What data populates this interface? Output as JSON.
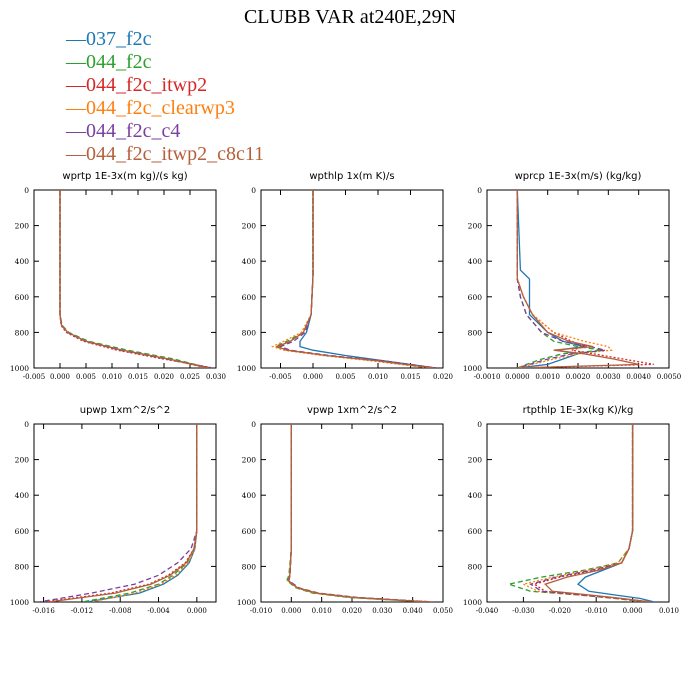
{
  "title": "CLUBB VAR at240E,29N",
  "legend": [
    {
      "label": "037_f2c",
      "color": "#1f77b4",
      "dash": "solid"
    },
    {
      "label": "044_f2c",
      "color": "#2ca02c",
      "dash": "dash"
    },
    {
      "label": "044_f2c_itwp2",
      "color": "#d62728",
      "dash": "dot"
    },
    {
      "label": "044_f2c_clearwp3",
      "color": "#ff7f0e",
      "dash": "dot"
    },
    {
      "label": "044_f2c_c4",
      "color": "#7b3f9e",
      "dash": "dash"
    },
    {
      "label": "044_f2c_itwp2_c8c11",
      "color": "#b5603a",
      "dash": "solid"
    }
  ],
  "chart_data": [
    {
      "type": "line",
      "title": "wprtp  1E-3x(m kg)/(s kg)",
      "xlim": [
        -0.005,
        0.03
      ],
      "xticks": [
        "-0.005",
        "0.000",
        "0.005",
        "0.010",
        "0.015",
        "0.020",
        "0.025",
        "0.030"
      ],
      "ylim": [
        1000,
        0
      ],
      "yticks": [
        "0",
        "200",
        "400",
        "600",
        "800",
        "1000"
      ],
      "y": [
        0,
        400,
        700,
        760,
        800,
        850,
        900,
        950,
        1000
      ],
      "series": [
        {
          "name": "037_f2c",
          "x": [
            0.0,
            0.0,
            0.0,
            0.0003,
            0.0015,
            0.005,
            0.012,
            0.021,
            0.029
          ]
        },
        {
          "name": "044_f2c",
          "x": [
            0.0,
            0.0,
            0.0,
            0.0004,
            0.0017,
            0.0055,
            0.013,
            0.022,
            0.0285
          ]
        },
        {
          "name": "044_f2c_itwp2",
          "x": [
            0.0,
            0.0,
            0.0,
            0.0002,
            0.0012,
            0.0045,
            0.011,
            0.02,
            0.0295
          ]
        },
        {
          "name": "044_f2c_clearwp3",
          "x": [
            0.0,
            0.0,
            0.0,
            0.0003,
            0.0015,
            0.005,
            0.012,
            0.021,
            0.028
          ]
        },
        {
          "name": "044_f2c_c4",
          "x": [
            0.0,
            0.0,
            0.0,
            0.0003,
            0.0014,
            0.0048,
            0.0115,
            0.0205,
            0.029
          ]
        },
        {
          "name": "044_f2c_itwp2_c8c11",
          "x": [
            0.0,
            0.0,
            0.0,
            0.0003,
            0.0015,
            0.005,
            0.012,
            0.021,
            0.0285
          ]
        }
      ]
    },
    {
      "type": "line",
      "title": "wpthlp  1x(m K)/s",
      "xlim": [
        -0.008,
        0.02
      ],
      "xticks": [
        "-0.005",
        "0.000",
        "0.005",
        "0.010",
        "0.015",
        "0.020"
      ],
      "xtick_values": [
        -0.005,
        0.0,
        0.005,
        0.01,
        0.015,
        0.02
      ],
      "ylim": [
        1000,
        0
      ],
      "yticks": [
        "0",
        "200",
        "400",
        "600",
        "800",
        "1000"
      ],
      "y": [
        0,
        480,
        700,
        800,
        850,
        880,
        900,
        930,
        960,
        1000
      ],
      "series": [
        {
          "name": "037_f2c",
          "x": [
            0.0,
            0.0,
            -0.0003,
            -0.001,
            -0.002,
            -0.002,
            0.0,
            0.005,
            0.011,
            0.019
          ]
        },
        {
          "name": "044_f2c",
          "x": [
            0.0,
            0.0,
            -0.0003,
            -0.0015,
            -0.004,
            -0.0058,
            -0.004,
            0.002,
            0.01,
            0.018
          ]
        },
        {
          "name": "044_f2c_itwp2",
          "x": [
            0.0,
            0.0,
            -0.0003,
            -0.0015,
            -0.0035,
            -0.0055,
            -0.004,
            0.002,
            0.01,
            0.019
          ]
        },
        {
          "name": "044_f2c_clearwp3",
          "x": [
            0.0,
            0.0,
            -0.0003,
            -0.0018,
            -0.0045,
            -0.0062,
            -0.0045,
            0.0015,
            0.009,
            0.018
          ]
        },
        {
          "name": "044_f2c_c4",
          "x": [
            0.0,
            0.0,
            -0.0003,
            -0.0012,
            -0.003,
            -0.005,
            -0.0035,
            0.0025,
            0.011,
            0.019
          ]
        },
        {
          "name": "044_f2c_itwp2_c8c11",
          "x": [
            0.0,
            0.0,
            -0.0003,
            -0.0015,
            -0.0035,
            -0.0055,
            -0.004,
            0.002,
            0.01,
            0.0185
          ]
        }
      ]
    },
    {
      "type": "line",
      "title": "wprcp  1E-3x(m/s) (kg/kg)",
      "xlim": [
        -0.001,
        0.005
      ],
      "xticks": [
        "-0.0010",
        "0.0000",
        "0.0010",
        "0.0020",
        "0.0030",
        "0.0040",
        "0.0050"
      ],
      "ylim": [
        1000,
        0
      ],
      "yticks": [
        "0",
        "200",
        "400",
        "600",
        "800",
        "1000"
      ],
      "y": [
        0,
        450,
        500,
        600,
        700,
        800,
        850,
        880,
        900,
        920,
        950,
        980,
        1000
      ],
      "series": [
        {
          "name": "037_f2c",
          "x": [
            0.0,
            0.0001,
            0.0004,
            0.0004,
            0.0004,
            0.001,
            0.0015,
            0.0022,
            0.0013,
            0.002,
            0.0015,
            0.001,
            0.0
          ]
        },
        {
          "name": "044_f2c",
          "x": [
            0.0,
            0.0,
            0.0,
            0.0001,
            0.0003,
            0.0008,
            0.0012,
            0.002,
            0.0028,
            0.0015,
            0.0008,
            0.0003,
            0.0
          ]
        },
        {
          "name": "044_f2c_itwp2",
          "x": [
            0.0,
            0.0,
            0.0,
            0.0002,
            0.0005,
            0.0012,
            0.0018,
            0.0022,
            0.0018,
            0.0025,
            0.0035,
            0.0045,
            0.0
          ]
        },
        {
          "name": "044_f2c_clearwp3",
          "x": [
            0.0,
            0.0,
            0.0,
            0.0002,
            0.0005,
            0.0012,
            0.0022,
            0.003,
            0.0031,
            0.002,
            0.0012,
            0.0005,
            0.0
          ]
        },
        {
          "name": "044_f2c_c4",
          "x": [
            0.0,
            0.0,
            0.0,
            0.0001,
            0.0003,
            0.0008,
            0.0015,
            0.0024,
            0.0029,
            0.0018,
            0.001,
            0.0004,
            0.0
          ]
        },
        {
          "name": "044_f2c_itwp2_c8c11",
          "x": [
            0.0,
            0.0,
            0.0,
            0.0002,
            0.0005,
            0.001,
            0.0017,
            0.0025,
            0.0012,
            0.0022,
            0.0032,
            0.004,
            0.0
          ]
        }
      ]
    },
    {
      "type": "line",
      "title": "upwp  1xm^2/s^2",
      "xlim": [
        -0.017,
        0.002
      ],
      "xticks": [
        "-0.016",
        "-0.012",
        "-0.008",
        "-0.004",
        "0.000"
      ],
      "xtick_values": [
        -0.016,
        -0.012,
        -0.008,
        -0.004,
        0.0
      ],
      "ylim": [
        1000,
        0
      ],
      "yticks": [
        "0",
        "200",
        "400",
        "600",
        "800",
        "1000"
      ],
      "y": [
        0,
        200,
        400,
        600,
        700,
        780,
        850,
        900,
        950,
        1000
      ],
      "series": [
        {
          "name": "037_f2c",
          "x": [
            0.0,
            0.0,
            0.0,
            0.0,
            -0.0002,
            -0.0008,
            -0.002,
            -0.0035,
            -0.006,
            -0.0115
          ]
        },
        {
          "name": "044_f2c",
          "x": [
            0.0,
            0.0,
            0.0,
            0.0,
            -0.0003,
            -0.001,
            -0.0025,
            -0.004,
            -0.007,
            -0.012
          ]
        },
        {
          "name": "044_f2c_itwp2",
          "x": [
            0.0,
            0.0,
            0.0,
            0.0,
            -0.0003,
            -0.0012,
            -0.003,
            -0.005,
            -0.009,
            -0.016
          ]
        },
        {
          "name": "044_f2c_clearwp3",
          "x": [
            0.0,
            0.0,
            0.0,
            0.0,
            -0.0002,
            -0.0009,
            -0.0022,
            -0.0038,
            -0.0065,
            -0.011
          ]
        },
        {
          "name": "044_f2c_c4",
          "x": [
            0.0,
            0.0,
            0.0,
            0.0,
            -0.0006,
            -0.002,
            -0.004,
            -0.0065,
            -0.011,
            -0.0165
          ]
        },
        {
          "name": "044_f2c_itwp2_c8c11",
          "x": [
            0.0,
            0.0,
            0.0,
            0.0,
            -0.0003,
            -0.0011,
            -0.0028,
            -0.0048,
            -0.0085,
            -0.0155
          ]
        }
      ]
    },
    {
      "type": "line",
      "title": "vpwp  1xm^2/s^2",
      "xlim": [
        -0.01,
        0.05
      ],
      "xticks": [
        "-0.010",
        "0.000",
        "0.010",
        "0.020",
        "0.030",
        "0.040",
        "0.050"
      ],
      "ylim": [
        1000,
        0
      ],
      "yticks": [
        "0",
        "200",
        "400",
        "600",
        "800",
        "1000"
      ],
      "y": [
        0,
        400,
        700,
        850,
        880,
        920,
        950,
        975,
        1000
      ],
      "series": [
        {
          "name": "037_f2c",
          "x": [
            0.0,
            0.0,
            0.0,
            -0.0005,
            -0.001,
            0.002,
            0.008,
            0.02,
            0.046
          ]
        },
        {
          "name": "044_f2c",
          "x": [
            0.0,
            0.0,
            0.0,
            -0.0008,
            -0.0015,
            0.0015,
            0.007,
            0.019,
            0.045
          ]
        },
        {
          "name": "044_f2c_itwp2",
          "x": [
            0.0,
            0.0,
            0.0,
            -0.0005,
            -0.001,
            0.002,
            0.008,
            0.021,
            0.047
          ]
        },
        {
          "name": "044_f2c_clearwp3",
          "x": [
            0.0,
            0.0,
            0.0,
            -0.0006,
            -0.0012,
            0.0018,
            0.0075,
            0.02,
            0.046
          ]
        },
        {
          "name": "044_f2c_c4",
          "x": [
            0.0,
            0.0,
            0.0,
            -0.0004,
            -0.0008,
            0.0025,
            0.009,
            0.022,
            0.047
          ]
        },
        {
          "name": "044_f2c_itwp2_c8c11",
          "x": [
            0.0,
            0.0,
            0.0,
            -0.0005,
            -0.001,
            0.002,
            0.0085,
            0.021,
            0.046
          ]
        }
      ]
    },
    {
      "type": "line",
      "title": "rtpthlp  1E-3x(kg K)/kg",
      "xlim": [
        -0.04,
        0.01
      ],
      "xticks": [
        "-0.040",
        "-0.030",
        "-0.020",
        "-0.010",
        "0.000",
        "0.010"
      ],
      "ylim": [
        1000,
        0
      ],
      "yticks": [
        "0",
        "200",
        "400",
        "600",
        "800",
        "1000"
      ],
      "y": [
        0,
        600,
        700,
        780,
        820,
        860,
        900,
        940,
        960,
        980,
        1000
      ],
      "series": [
        {
          "name": "037_f2c",
          "x": [
            0.0,
            0.0,
            -0.001,
            -0.003,
            -0.008,
            -0.013,
            -0.015,
            -0.012,
            -0.005,
            0.002,
            0.006
          ]
        },
        {
          "name": "044_f2c",
          "x": [
            0.0,
            0.0,
            -0.001,
            -0.004,
            -0.013,
            -0.025,
            -0.034,
            -0.028,
            -0.015,
            -0.005,
            0.004
          ]
        },
        {
          "name": "044_f2c_itwp2",
          "x": [
            0.0,
            0.0,
            -0.001,
            -0.003,
            -0.01,
            -0.02,
            -0.027,
            -0.024,
            -0.014,
            -0.004,
            0.005
          ]
        },
        {
          "name": "044_f2c_clearwp3",
          "x": [
            0.0,
            0.0,
            -0.001,
            -0.004,
            -0.012,
            -0.022,
            -0.03,
            -0.026,
            -0.015,
            -0.005,
            0.004
          ]
        },
        {
          "name": "044_f2c_c4",
          "x": [
            0.0,
            0.0,
            -0.001,
            -0.003,
            -0.011,
            -0.021,
            -0.028,
            -0.025,
            -0.014,
            -0.004,
            0.005
          ]
        },
        {
          "name": "044_f2c_itwp2_c8c11",
          "x": [
            0.0,
            0.0,
            -0.001,
            -0.003,
            -0.009,
            -0.018,
            -0.024,
            -0.022,
            -0.012,
            -0.003,
            0.005
          ]
        }
      ]
    }
  ]
}
